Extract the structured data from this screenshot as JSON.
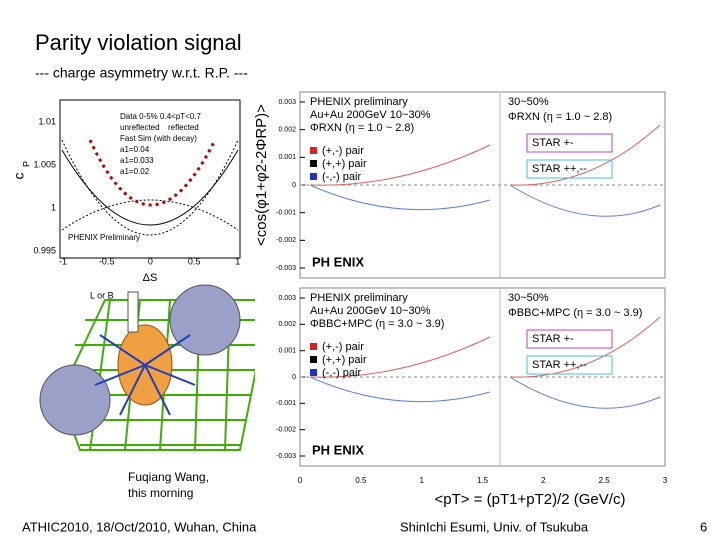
{
  "header": {
    "title": "Parity violation signal",
    "subtitle": "--- charge asymmetry w.r.t. R.P. ---"
  },
  "left_plot": {
    "y_label": "c",
    "y_label_sub": "P",
    "x_label": "ΔS",
    "yticks": [
      "1.01",
      "1.005",
      "1",
      "0.995"
    ],
    "xticks": [
      "-1",
      "-0.5",
      "0",
      "0.5",
      "1"
    ],
    "legend": [
      "Data 0-5% 0.4<pT<0.7",
      "unreflected",
      "reflected",
      "Fast Sim (with decay)",
      "a1=0.04",
      "a1=0.033",
      "a1=0.02"
    ],
    "watermark": "PHENIX Preliminary"
  },
  "diagram": {
    "label": "L or B",
    "caption": [
      "Fuqiang Wang,",
      "this morning"
    ]
  },
  "right_plot": {
    "y_label": "<cos(φ1+φ2-2ΦRP)>",
    "x_label": "<pT> = (pT1+pT2)/2 (GeV/c)",
    "xticks": [
      "0",
      "0.5",
      "1",
      "1.5",
      "2",
      "2.5",
      "3"
    ],
    "panels": [
      {
        "yticks": [
          "0.003",
          "0.002",
          "0.001",
          "0",
          "-0.001",
          "-0.002",
          "-0.003"
        ],
        "lines": [
          "PHENIX preliminary",
          "Au+Au 200GeV 10~30%",
          "ΦRXN (η = 1.0 ~ 2.8)"
        ],
        "pairs": [
          "(+,-) pair",
          "(+,+) pair",
          "(-,-) pair"
        ],
        "centrality": "30~50%",
        "plane": "ΦRXN (η = 1.0 ~ 2.8)",
        "star": [
          "STAR +-",
          "STAR ++,--"
        ],
        "logo": "PH ENIX"
      },
      {
        "yticks": [
          "0.003",
          "0.002",
          "0.001",
          "0",
          "-0.001",
          "-0.002",
          "-0.003"
        ],
        "lines": [
          "PHENIX preliminary",
          "Au+Au 200GeV 10~30%",
          "ΦBBC+MPC (η = 3.0 ~ 3.9)"
        ],
        "pairs": [
          "(+,-) pair",
          "(+,+) pair",
          "(-,-) pair"
        ],
        "centrality": "30~50%",
        "plane": "ΦBBC+MPC (η = 3.0 ~ 3.9)",
        "star": [
          "STAR +-",
          "STAR ++,--"
        ],
        "logo": "PH ENIX"
      }
    ]
  },
  "footer": {
    "event": "ATHIC2010, 18/Oct/2010, Wuhan, China",
    "author": "ShinIchi Esumi, Univ. of Tsukuba",
    "page": "6"
  }
}
